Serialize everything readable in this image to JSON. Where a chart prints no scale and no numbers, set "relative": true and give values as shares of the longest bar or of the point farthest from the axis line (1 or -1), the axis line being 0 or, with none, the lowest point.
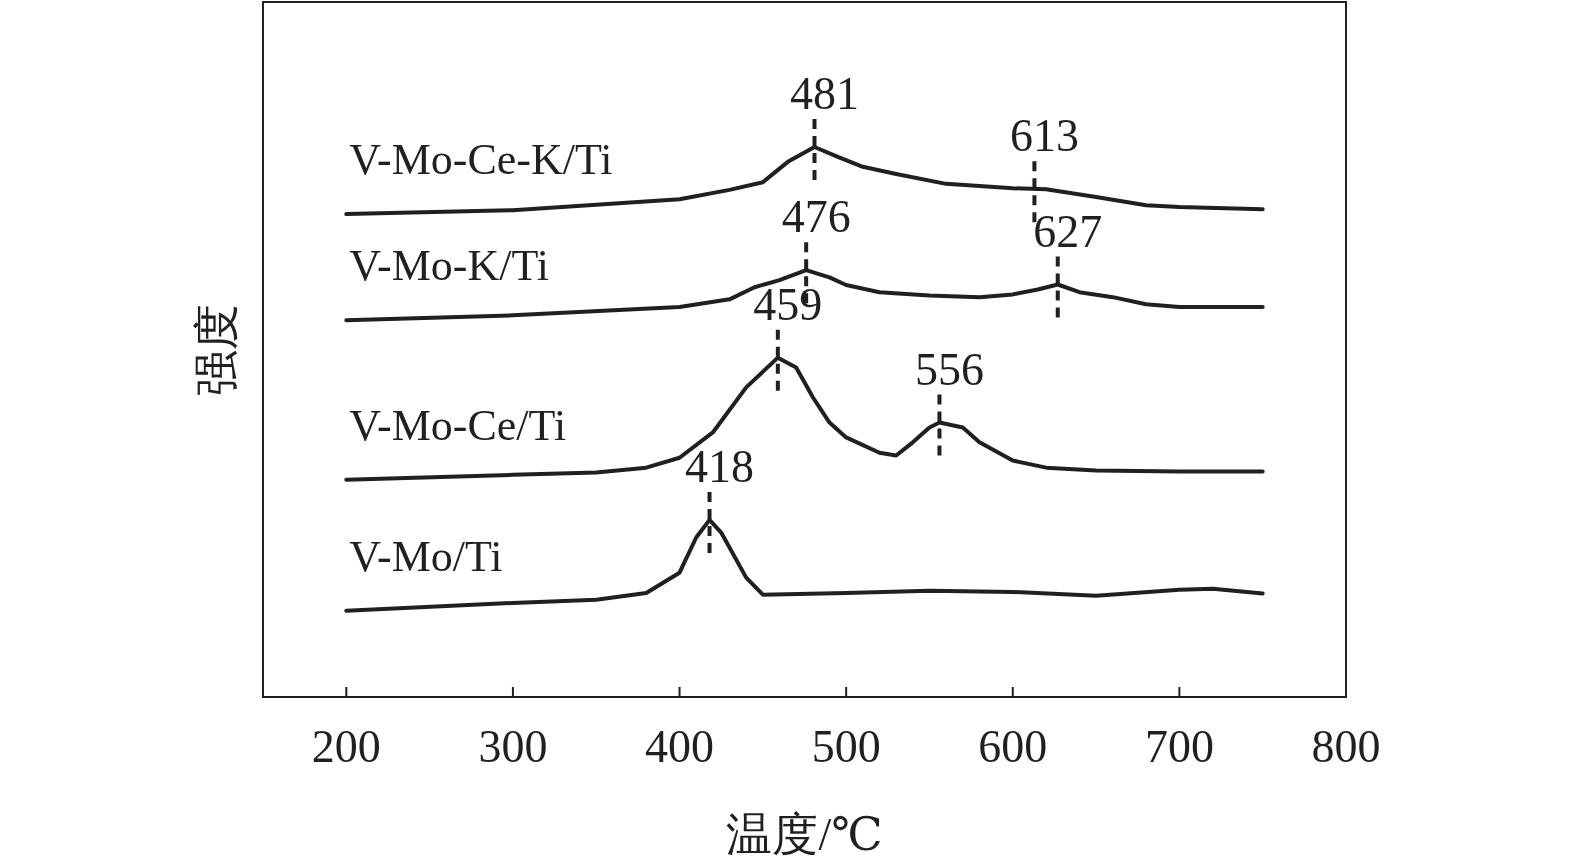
{
  "chart_data": {
    "type": "line",
    "relative": true,
    "xlabel": "温度/℃",
    "ylabel": "强度",
    "xlim": [
      150,
      800
    ],
    "xticks": [
      200,
      300,
      400,
      500,
      600,
      700,
      800
    ],
    "line_style": "solid",
    "marker": "none",
    "grid": false,
    "series": [
      {
        "name": "V-Mo-Ce-K/Ti",
        "color": "#231f20",
        "x": [
          200,
          300,
          400,
          430,
          450,
          465,
          481,
          495,
          510,
          530,
          560,
          600,
          620,
          650,
          680,
          700,
          750
        ],
        "values": [
          0.878,
          0.885,
          0.905,
          0.922,
          0.936,
          0.973,
          1.0,
          0.982,
          0.964,
          0.951,
          0.933,
          0.925,
          0.923,
          0.909,
          0.894,
          0.891,
          0.887
        ]
      },
      {
        "name": "V-Mo-K/Ti",
        "color": "#231f20",
        "x": [
          200,
          300,
          400,
          430,
          445,
          460,
          476,
          490,
          500,
          520,
          550,
          580,
          600,
          615,
          627,
          640,
          660,
          680,
          700,
          750
        ],
        "values": [
          0.685,
          0.694,
          0.709,
          0.723,
          0.745,
          0.758,
          0.776,
          0.763,
          0.749,
          0.736,
          0.73,
          0.727,
          0.732,
          0.741,
          0.75,
          0.736,
          0.727,
          0.714,
          0.709,
          0.709
        ]
      },
      {
        "name": "V-Mo-Ce/Ti",
        "color": "#231f20",
        "x": [
          200,
          300,
          350,
          380,
          400,
          420,
          440,
          459,
          470,
          480,
          490,
          500,
          520,
          530,
          540,
          550,
          556,
          570,
          580,
          600,
          620,
          650,
          700,
          750
        ],
        "values": [
          0.395,
          0.404,
          0.408,
          0.417,
          0.435,
          0.481,
          0.563,
          0.617,
          0.599,
          0.545,
          0.499,
          0.472,
          0.444,
          0.439,
          0.463,
          0.49,
          0.499,
          0.49,
          0.463,
          0.43,
          0.417,
          0.412,
          0.41,
          0.41
        ]
      },
      {
        "name": "V-Mo/Ti",
        "color": "#231f20",
        "x": [
          200,
          300,
          350,
          380,
          400,
          410,
          418,
          425,
          440,
          450,
          500,
          550,
          600,
          650,
          700,
          720,
          750
        ],
        "values": [
          0.157,
          0.171,
          0.177,
          0.189,
          0.226,
          0.29,
          0.322,
          0.299,
          0.217,
          0.186,
          0.189,
          0.193,
          0.191,
          0.184,
          0.195,
          0.197,
          0.188
        ]
      }
    ],
    "annotations": [
      {
        "text": "481",
        "x": 481,
        "y": 1.0
      },
      {
        "text": "613",
        "x": 613,
        "y": 0.923
      },
      {
        "text": "476",
        "x": 476,
        "y": 0.776
      },
      {
        "text": "627",
        "x": 627,
        "y": 0.75
      },
      {
        "text": "459",
        "x": 459,
        "y": 0.617
      },
      {
        "text": "556",
        "x": 556,
        "y": 0.499
      },
      {
        "text": "418",
        "x": 418,
        "y": 0.322
      }
    ]
  }
}
